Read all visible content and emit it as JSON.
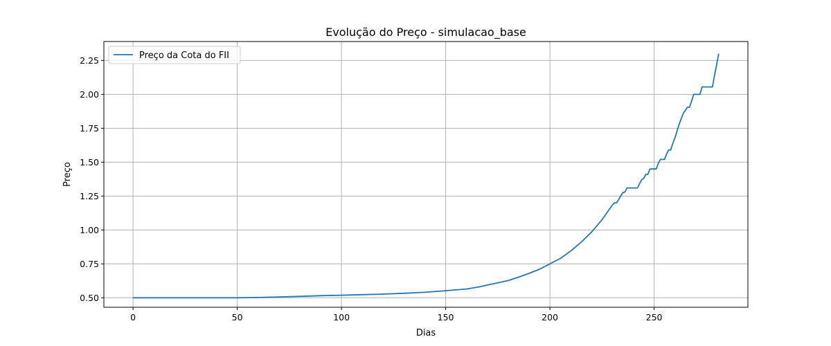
{
  "chart_data": {
    "type": "line",
    "title": "Evolução do Preço - simulacao_base",
    "xlabel": "Dias",
    "ylabel": "Preço",
    "xlim": [
      -14,
      295
    ],
    "ylim": [
      0.43,
      2.39
    ],
    "xticks": [
      0,
      50,
      100,
      150,
      200,
      250
    ],
    "yticks": [
      0.5,
      0.75,
      1.0,
      1.25,
      1.5,
      1.75,
      2.0,
      2.25
    ],
    "xtick_labels": [
      "0",
      "50",
      "100",
      "150",
      "200",
      "250"
    ],
    "ytick_labels": [
      "0.50",
      "0.75",
      "1.00",
      "1.25",
      "1.50",
      "1.75",
      "2.00",
      "2.25"
    ],
    "grid": true,
    "legend_position": "top-left",
    "series": [
      {
        "name": "Preço da Cota do FII",
        "color": "#1f77b4",
        "x": [
          0,
          10,
          20,
          30,
          40,
          50,
          60,
          70,
          80,
          90,
          100,
          110,
          120,
          130,
          140,
          150,
          160,
          166,
          170,
          175,
          180,
          185,
          190,
          195,
          200,
          205,
          210,
          215,
          220,
          225,
          230,
          231,
          232,
          235,
          236,
          237,
          238,
          240,
          241,
          242,
          244,
          245,
          246,
          247,
          248,
          249,
          250,
          251,
          252,
          253,
          254,
          255,
          256,
          257,
          258,
          259,
          260,
          262,
          264,
          266,
          267,
          268,
          269,
          270,
          271,
          272,
          273,
          274,
          275,
          276,
          277,
          278,
          279,
          281
        ],
        "y": [
          0.5,
          0.5,
          0.5,
          0.5,
          0.5,
          0.5,
          0.502,
          0.506,
          0.51,
          0.515,
          0.519,
          0.523,
          0.527,
          0.533,
          0.54,
          0.552,
          0.565,
          0.58,
          0.594,
          0.61,
          0.627,
          0.652,
          0.68,
          0.71,
          0.75,
          0.79,
          0.845,
          0.91,
          0.985,
          1.075,
          1.185,
          1.2,
          1.2,
          1.275,
          1.28,
          1.31,
          1.31,
          1.31,
          1.31,
          1.31,
          1.37,
          1.38,
          1.41,
          1.41,
          1.45,
          1.45,
          1.45,
          1.45,
          1.49,
          1.52,
          1.52,
          1.52,
          1.56,
          1.59,
          1.59,
          1.64,
          1.68,
          1.78,
          1.86,
          1.905,
          1.905,
          1.95,
          2.0,
          2.0,
          2.0,
          2.0,
          2.055,
          2.055,
          2.055,
          2.055,
          2.055,
          2.055,
          2.14,
          2.3
        ]
      }
    ]
  }
}
